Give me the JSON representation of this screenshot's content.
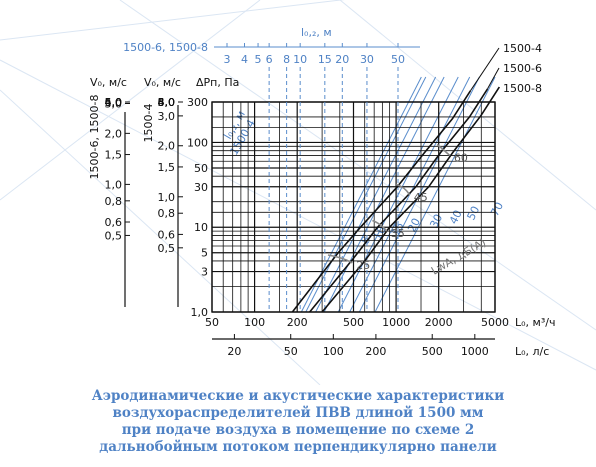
{
  "chart_data": {
    "type": "line",
    "x_axis": {
      "label": "L₀, м³/ч",
      "scale": "log",
      "range": [
        50,
        5000
      ],
      "ticks": [
        "50",
        "100",
        "200",
        "500",
        "1000",
        "2000",
        "5000"
      ]
    },
    "x2_axis": {
      "label": "L₀, л/с",
      "ticks": [
        "20",
        "50",
        "100",
        "200",
        "500",
        "1000"
      ]
    },
    "y_axis_dp": {
      "label": "ΔPп, Па",
      "scale": "log",
      "range": [
        1,
        300
      ],
      "ticks": [
        "1,0",
        "3",
        "5",
        "10",
        "30",
        "50",
        "100",
        "300"
      ]
    },
    "y_axis_v_1500_4": {
      "label": "V₀, м/с",
      "group_label": "1500-4",
      "ticks": [
        "0,5",
        "0,6",
        "0,8",
        "1,0",
        "1,5",
        "2,0",
        "3,0",
        "4,0",
        "5,0",
        "6,0",
        "8,0"
      ]
    },
    "y_axis_v_1500_6_8": {
      "label": "V₀, м/с",
      "group_label": "1500-6, 1500-8",
      "ticks": [
        "0,5",
        "0,6",
        "0,8",
        "1,0",
        "1,5",
        "2,0",
        "3,0",
        "4,0",
        "5,0",
        "6,0"
      ]
    },
    "top_axis": {
      "label": "l₀,₂, м",
      "group_label": "1500-6, 1500-8",
      "ticks": [
        "3",
        "4",
        "5",
        "6",
        "8",
        "10",
        "15",
        "20",
        "30",
        "50"
      ]
    },
    "diag_group_label": "l₀,₂, м",
    "diag_group_sublabel": "1500-4",
    "diag_values": [
      "8",
      "10",
      "15",
      "20",
      "30",
      "40",
      "50",
      "70"
    ],
    "series": [
      {
        "name": "1500-4",
        "points": [
          [
            185,
            1
          ],
          [
            390,
            5
          ],
          [
            560,
            10
          ],
          [
            1020,
            30
          ],
          [
            1580,
            75
          ],
          [
            2500,
            190
          ]
        ]
      },
      {
        "name": "1500-6",
        "points": [
          [
            245,
            1
          ],
          [
            500,
            4.3
          ],
          [
            740,
            10
          ],
          [
            1380,
            30
          ],
          [
            2050,
            75
          ],
          [
            3300,
            200
          ]
        ]
      },
      {
        "name": "1500-8",
        "points": [
          [
            300,
            1
          ],
          [
            600,
            4.0
          ],
          [
            900,
            10
          ],
          [
            1700,
            30
          ],
          [
            2500,
            75
          ],
          [
            4000,
            210
          ]
        ]
      }
    ],
    "noise_label": "LwA, дБ(А)",
    "noise_values": [
      "25",
      "35",
      "45",
      "60"
    ],
    "caption": [
      "Аэродинамические и акустические характеристики",
      "воздухораспределителей ПВВ длиной 1500 мм",
      "при подаче воздуха в помещение по схеме 2",
      "дальнобойным потоком перпендикулярно панели"
    ]
  }
}
